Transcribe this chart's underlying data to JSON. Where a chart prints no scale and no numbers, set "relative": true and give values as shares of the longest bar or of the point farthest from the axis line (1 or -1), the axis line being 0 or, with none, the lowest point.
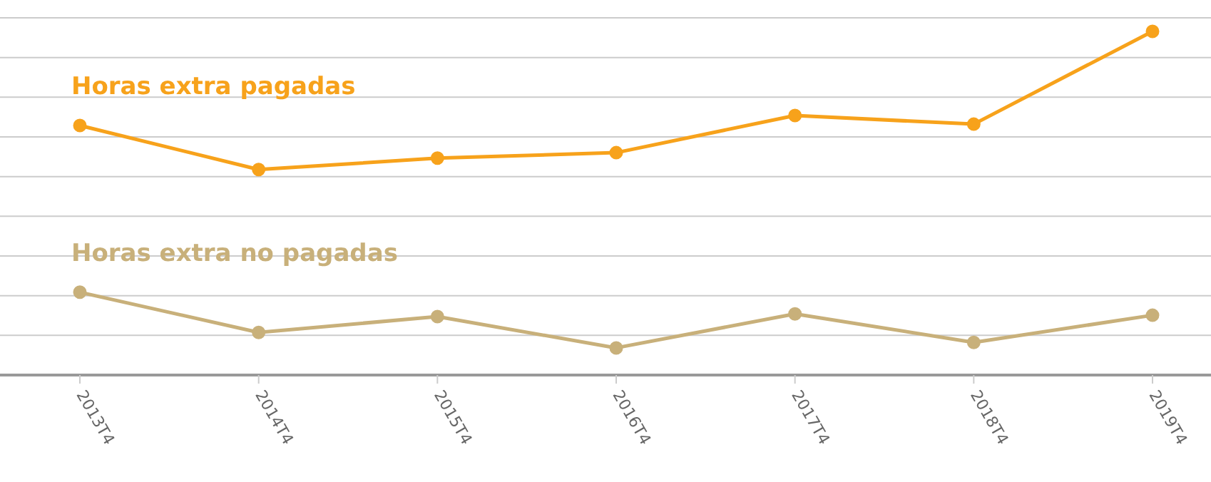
{
  "chart_data": {
    "type": "line",
    "relative": true,
    "categories": [
      "2013T4",
      "2014T4",
      "2015T4",
      "2016T4",
      "2017T4",
      "2018T4",
      "2019T4"
    ],
    "series": [
      {
        "name": "Horas extra pagadas",
        "color": "#f7a21b",
        "values": [
          0.726,
          0.598,
          0.631,
          0.647,
          0.755,
          0.73,
          1
        ]
      },
      {
        "name": "Horas extra no pagadas",
        "color": "#c8b07a",
        "values": [
          0.241,
          0.124,
          0.17,
          0.079,
          0.178,
          0.095,
          0.174
        ]
      }
    ],
    "grid": "y",
    "legend": false,
    "marker": "circle",
    "line_style": "solid"
  }
}
